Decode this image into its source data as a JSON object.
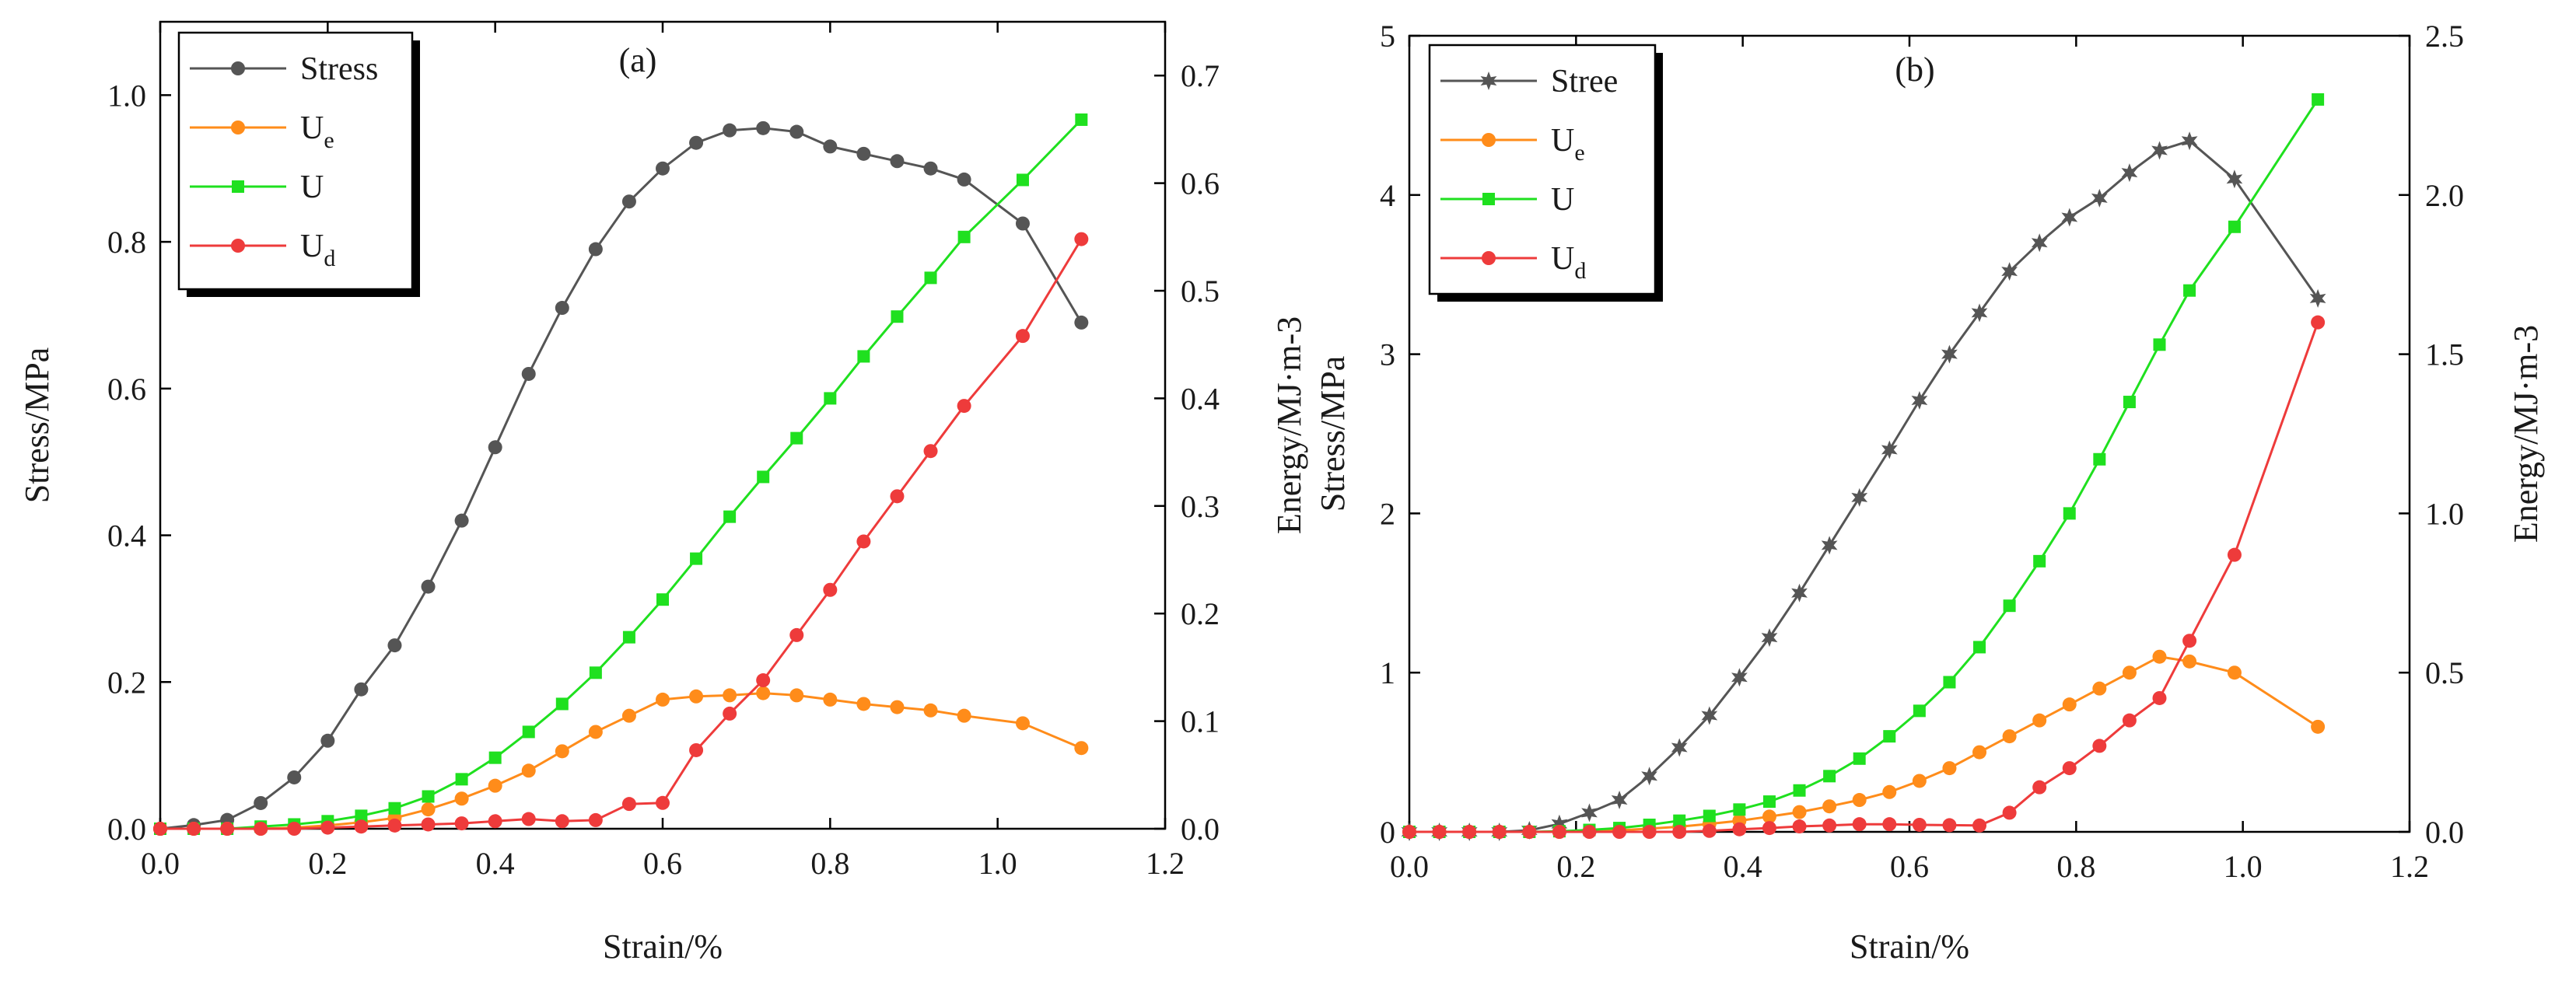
{
  "colors": {
    "stress": "#555555",
    "ue": "#ff8c1a",
    "u": "#1fe01f",
    "ud": "#ee3b3b"
  },
  "chart_data": [
    {
      "type": "line",
      "panel": "(a)",
      "xlabel": "Strain/%",
      "ylabel_left": "Stress/MPa",
      "ylabel_right": "Energy/MJ·m-3",
      "xlim": [
        0.0,
        1.2
      ],
      "ylim_left": [
        0.0,
        1.1
      ],
      "ylim_right": [
        0.0,
        0.75
      ],
      "xticks": [
        "0.0",
        "0.2",
        "0.4",
        "0.6",
        "0.8",
        "1.0",
        "1.2"
      ],
      "yticks_left": [
        "0.0",
        "0.2",
        "0.4",
        "0.6",
        "0.8",
        "1.0"
      ],
      "yticks_right": [
        "0.0",
        "0.1",
        "0.2",
        "0.3",
        "0.4",
        "0.5",
        "0.6",
        "0.7"
      ],
      "legend": [
        {
          "label": "Stress",
          "sub": "",
          "series": "stress"
        },
        {
          "label": "U",
          "sub": "e",
          "series": "ue"
        },
        {
          "label": "U",
          "sub": "",
          "series": "u"
        },
        {
          "label": "U",
          "sub": "d",
          "series": "ud"
        }
      ],
      "series": [
        {
          "name": "Stress",
          "key": "stress",
          "axis": "left",
          "marker": "circle",
          "x": [
            0.0,
            0.04,
            0.08,
            0.12,
            0.16,
            0.2,
            0.24,
            0.28,
            0.32,
            0.36,
            0.4,
            0.44,
            0.48,
            0.52,
            0.56,
            0.6,
            0.64,
            0.68,
            0.72,
            0.76,
            0.8,
            0.84,
            0.88,
            0.92,
            0.96,
            1.03,
            1.1
          ],
          "y": [
            0.0,
            0.005,
            0.012,
            0.035,
            0.07,
            0.12,
            0.19,
            0.25,
            0.33,
            0.42,
            0.52,
            0.62,
            0.71,
            0.79,
            0.855,
            0.9,
            0.935,
            0.952,
            0.955,
            0.95,
            0.93,
            0.92,
            0.91,
            0.9,
            0.885,
            0.825,
            0.69
          ]
        },
        {
          "name": "Ue",
          "key": "ue",
          "axis": "right",
          "marker": "circle",
          "x": [
            0.0,
            0.04,
            0.08,
            0.12,
            0.16,
            0.2,
            0.24,
            0.28,
            0.32,
            0.36,
            0.4,
            0.44,
            0.48,
            0.52,
            0.56,
            0.6,
            0.64,
            0.68,
            0.72,
            0.76,
            0.8,
            0.84,
            0.88,
            0.92,
            0.96,
            1.03,
            1.1
          ],
          "y": [
            0.0,
            0.0,
            0.0,
            0.0,
            0.001,
            0.003,
            0.006,
            0.01,
            0.018,
            0.028,
            0.04,
            0.054,
            0.072,
            0.09,
            0.105,
            0.12,
            0.123,
            0.124,
            0.126,
            0.124,
            0.12,
            0.116,
            0.113,
            0.11,
            0.105,
            0.098,
            0.075
          ]
        },
        {
          "name": "U",
          "key": "u",
          "axis": "right",
          "marker": "square",
          "x": [
            0.0,
            0.04,
            0.08,
            0.12,
            0.16,
            0.2,
            0.24,
            0.28,
            0.32,
            0.36,
            0.4,
            0.44,
            0.48,
            0.52,
            0.56,
            0.6,
            0.64,
            0.68,
            0.72,
            0.76,
            0.8,
            0.84,
            0.88,
            0.92,
            0.96,
            1.03,
            1.1
          ],
          "y": [
            0.0,
            0.0,
            0.0,
            0.002,
            0.004,
            0.007,
            0.012,
            0.019,
            0.03,
            0.046,
            0.066,
            0.09,
            0.116,
            0.145,
            0.178,
            0.213,
            0.251,
            0.29,
            0.327,
            0.363,
            0.4,
            0.439,
            0.476,
            0.512,
            0.55,
            0.603,
            0.659
          ]
        },
        {
          "name": "Ud",
          "key": "ud",
          "axis": "right",
          "marker": "circle",
          "x": [
            0.0,
            0.04,
            0.08,
            0.12,
            0.16,
            0.2,
            0.24,
            0.28,
            0.32,
            0.36,
            0.4,
            0.44,
            0.48,
            0.52,
            0.56,
            0.6,
            0.64,
            0.68,
            0.72,
            0.76,
            0.8,
            0.84,
            0.88,
            0.92,
            0.96,
            1.03,
            1.1
          ],
          "y": [
            0.0,
            0.0,
            0.0,
            0.0,
            0.0,
            0.001,
            0.002,
            0.003,
            0.004,
            0.005,
            0.007,
            0.009,
            0.007,
            0.008,
            0.023,
            0.024,
            0.073,
            0.107,
            0.138,
            0.18,
            0.222,
            0.267,
            0.309,
            0.351,
            0.393,
            0.458,
            0.548
          ]
        }
      ]
    },
    {
      "type": "line",
      "panel": "(b)",
      "xlabel": "Strain/%",
      "ylabel_left": "Stress/MPa",
      "ylabel_right": "Energy/MJ·m-3",
      "xlim": [
        0.0,
        1.2
      ],
      "ylim_left": [
        0.0,
        5.0
      ],
      "ylim_right": [
        0.0,
        2.5
      ],
      "xticks": [
        "0.0",
        "0.2",
        "0.4",
        "0.6",
        "0.8",
        "1.0",
        "1.2"
      ],
      "yticks_left": [
        "0",
        "1",
        "2",
        "3",
        "4",
        "5"
      ],
      "yticks_right": [
        "0.0",
        "0.5",
        "1.0",
        "1.5",
        "2.0",
        "2.5"
      ],
      "legend": [
        {
          "label": "Stree",
          "sub": "",
          "series": "stress"
        },
        {
          "label": "U",
          "sub": "e",
          "series": "ue"
        },
        {
          "label": "U",
          "sub": "",
          "series": "u"
        },
        {
          "label": "U",
          "sub": "d",
          "series": "ud"
        }
      ],
      "series": [
        {
          "name": "Stree",
          "key": "stress",
          "axis": "left",
          "marker": "star",
          "x": [
            0.0,
            0.036,
            0.072,
            0.108,
            0.144,
            0.18,
            0.216,
            0.252,
            0.288,
            0.324,
            0.36,
            0.396,
            0.432,
            0.468,
            0.504,
            0.54,
            0.576,
            0.612,
            0.648,
            0.684,
            0.72,
            0.756,
            0.792,
            0.828,
            0.864,
            0.9,
            0.936,
            0.99,
            1.09
          ],
          "y": [
            0.0,
            0.0,
            0.0,
            0.0,
            0.01,
            0.05,
            0.12,
            0.2,
            0.35,
            0.53,
            0.73,
            0.97,
            1.22,
            1.5,
            1.8,
            2.1,
            2.4,
            2.71,
            3.0,
            3.26,
            3.52,
            3.7,
            3.86,
            3.98,
            4.14,
            4.28,
            4.34,
            4.1,
            3.35
          ]
        },
        {
          "name": "Ue",
          "key": "ue",
          "axis": "right",
          "marker": "circle",
          "x": [
            0.0,
            0.036,
            0.072,
            0.108,
            0.144,
            0.18,
            0.216,
            0.252,
            0.288,
            0.324,
            0.36,
            0.396,
            0.432,
            0.468,
            0.504,
            0.54,
            0.576,
            0.612,
            0.648,
            0.684,
            0.72,
            0.756,
            0.792,
            0.828,
            0.864,
            0.9,
            0.936,
            0.99,
            1.09
          ],
          "y": [
            0.0,
            0.0,
            0.0,
            0.0,
            0.0,
            0.0,
            0.002,
            0.005,
            0.01,
            0.016,
            0.025,
            0.035,
            0.048,
            0.062,
            0.08,
            0.1,
            0.125,
            0.16,
            0.2,
            0.25,
            0.3,
            0.35,
            0.4,
            0.45,
            0.5,
            0.55,
            0.535,
            0.5,
            0.33
          ]
        },
        {
          "name": "U",
          "key": "u",
          "axis": "right",
          "marker": "square",
          "x": [
            0.0,
            0.036,
            0.072,
            0.108,
            0.144,
            0.18,
            0.216,
            0.252,
            0.288,
            0.324,
            0.36,
            0.396,
            0.432,
            0.468,
            0.504,
            0.54,
            0.576,
            0.612,
            0.648,
            0.684,
            0.72,
            0.756,
            0.792,
            0.828,
            0.864,
            0.9,
            0.936,
            0.99,
            1.09
          ],
          "y": [
            0.0,
            0.0,
            0.0,
            0.0,
            0.0,
            0.002,
            0.006,
            0.012,
            0.022,
            0.035,
            0.05,
            0.07,
            0.095,
            0.13,
            0.175,
            0.23,
            0.3,
            0.38,
            0.47,
            0.58,
            0.71,
            0.85,
            1.0,
            1.17,
            1.35,
            1.53,
            1.7,
            1.9,
            2.3
          ]
        },
        {
          "name": "Ud",
          "key": "ud",
          "axis": "right",
          "marker": "circle",
          "x": [
            0.0,
            0.036,
            0.072,
            0.108,
            0.144,
            0.18,
            0.216,
            0.252,
            0.288,
            0.324,
            0.36,
            0.396,
            0.432,
            0.468,
            0.504,
            0.54,
            0.576,
            0.612,
            0.648,
            0.684,
            0.72,
            0.756,
            0.792,
            0.828,
            0.864,
            0.9,
            0.936,
            0.99,
            1.09
          ],
          "y": [
            0.0,
            0.0,
            0.0,
            0.0,
            0.0,
            0.0,
            0.0,
            0.0,
            0.0,
            0.0,
            0.003,
            0.008,
            0.012,
            0.017,
            0.02,
            0.024,
            0.024,
            0.022,
            0.021,
            0.02,
            0.06,
            0.14,
            0.2,
            0.27,
            0.35,
            0.42,
            0.6,
            0.87,
            1.6
          ]
        }
      ]
    }
  ]
}
